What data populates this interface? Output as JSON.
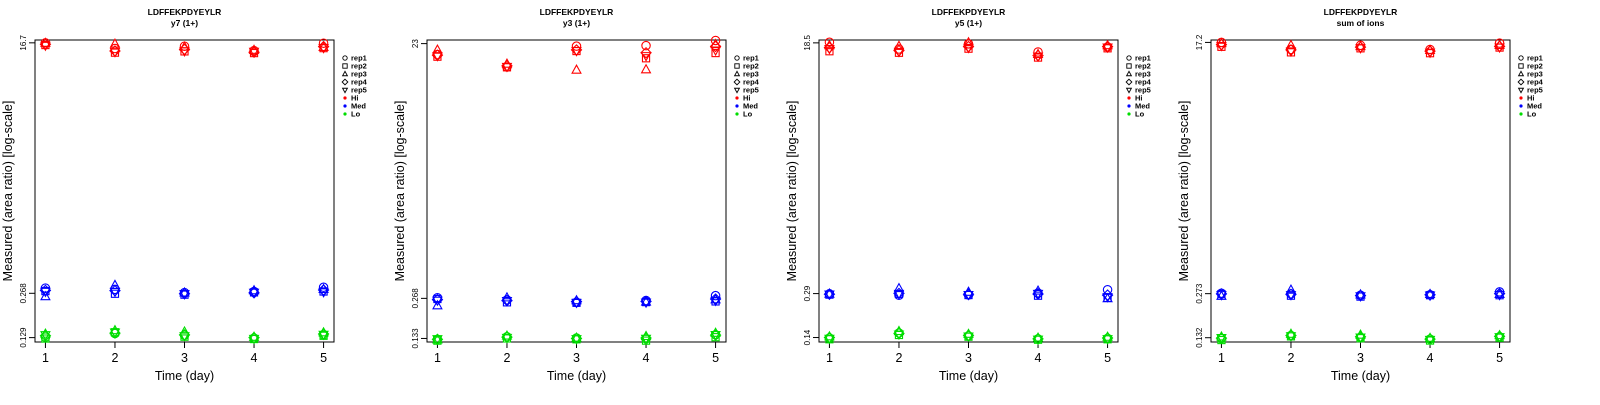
{
  "chart_data": [
    {
      "type": "scatter",
      "title": "LDFFEKPDYEYLR",
      "subtitle": "y7 (1+)",
      "xlabel": "Time (day)",
      "ylabel": "Measured (area ratio) [log-scale]",
      "y_scale": "log",
      "ylim": [
        0.12,
        17.5
      ],
      "xlim": [
        0.85,
        5.15
      ],
      "xticks": [
        "1",
        "2",
        "3",
        "4",
        "5"
      ],
      "yticks": [
        {
          "v": 0.129,
          "label": "0.129"
        },
        {
          "v": 0.268,
          "label": "0.268"
        },
        {
          "v": 16.7,
          "label": "16.7"
        }
      ],
      "series": [
        {
          "name": "Hi",
          "values": {
            "rep1": [
              16.7,
              15.2,
              15.8,
              14.7,
              16.6
            ],
            "rep2": [
              16.1,
              14.2,
              14.5,
              14.1,
              15.3
            ],
            "rep3": [
              16.6,
              16.4,
              15.6,
              14.8,
              15.5
            ],
            "rep4": [
              16.3,
              14.6,
              15.0,
              14.3,
              15.7
            ],
            "rep5": [
              16.0,
              14.4,
              14.6,
              14.5,
              15.4
            ]
          }
        },
        {
          "name": "Med",
          "values": {
            "rep1": [
              0.292,
              0.286,
              0.271,
              0.276,
              0.296
            ],
            "rep2": [
              0.278,
              0.266,
              0.262,
              0.272,
              0.276
            ],
            "rep3": [
              0.254,
              0.306,
              0.27,
              0.28,
              0.286
            ],
            "rep4": [
              0.281,
              0.28,
              0.266,
              0.27,
              0.283
            ],
            "rep5": [
              0.276,
              0.276,
              0.266,
              0.272,
              0.274
            ]
          }
        },
        {
          "name": "Lo",
          "values": {
            "rep1": [
              0.13,
              0.138,
              0.134,
              0.128,
              0.135
            ],
            "rep2": [
              0.127,
              0.141,
              0.131,
              0.126,
              0.133
            ],
            "rep3": [
              0.137,
              0.145,
              0.142,
              0.13,
              0.14
            ],
            "rep4": [
              0.133,
              0.139,
              0.135,
              0.129,
              0.137
            ],
            "rep5": [
              0.135,
              0.141,
              0.133,
              0.127,
              0.136
            ]
          }
        }
      ],
      "legend": {
        "placement": "right",
        "reps": [
          "rep1",
          "rep2",
          "rep3",
          "rep4",
          "rep5"
        ],
        "levels": [
          "Hi",
          "Med",
          "Lo"
        ]
      }
    },
    {
      "type": "scatter",
      "title": "LDFFEKPDYEYLR",
      "subtitle": "y3 (1+)",
      "xlabel": "Time (day)",
      "ylabel": "Measured (area ratio) [log-scale]",
      "y_scale": "log",
      "ylim": [
        0.125,
        24.5
      ],
      "xlim": [
        0.85,
        5.15
      ],
      "xticks": [
        "1",
        "2",
        "3",
        "4",
        "5"
      ],
      "yticks": [
        {
          "v": 0.133,
          "label": "0.133"
        },
        {
          "v": 0.268,
          "label": "0.268"
        },
        {
          "v": 23,
          "label": "23"
        }
      ],
      "series": [
        {
          "name": "Hi",
          "values": {
            "rep1": [
              19.0,
              15.3,
              22.0,
              22.2,
              24.3
            ],
            "rep2": [
              18.3,
              15.2,
              20.2,
              17.8,
              19.5
            ],
            "rep3": [
              20.6,
              16.1,
              14.5,
              14.6,
              22.7
            ],
            "rep4": [
              18.8,
              15.6,
              20.6,
              19.6,
              21.9
            ],
            "rep5": [
              18.6,
              15.4,
              20.3,
              18.6,
              20.5
            ]
          }
        },
        {
          "name": "Med",
          "values": {
            "rep1": [
              0.271,
              0.261,
              0.25,
              0.258,
              0.281
            ],
            "rep2": [
              0.265,
              0.25,
              0.248,
              0.251,
              0.254
            ],
            "rep3": [
              0.236,
              0.271,
              0.258,
              0.252,
              0.262
            ],
            "rep4": [
              0.262,
              0.258,
              0.253,
              0.254,
              0.265
            ],
            "rep5": [
              0.259,
              0.257,
              0.249,
              0.25,
              0.258
            ]
          }
        },
        {
          "name": "Lo",
          "values": {
            "rep1": [
              0.131,
              0.137,
              0.134,
              0.132,
              0.142
            ],
            "rep2": [
              0.128,
              0.133,
              0.131,
              0.128,
              0.136
            ],
            "rep3": [
              0.13,
              0.139,
              0.134,
              0.138,
              0.146
            ],
            "rep4": [
              0.131,
              0.136,
              0.133,
              0.134,
              0.141
            ],
            "rep5": [
              0.132,
              0.135,
              0.132,
              0.133,
              0.142
            ]
          }
        }
      ],
      "legend": {
        "placement": "right",
        "reps": [
          "rep1",
          "rep2",
          "rep3",
          "rep4",
          "rep5"
        ],
        "levels": [
          "Hi",
          "Med",
          "Lo"
        ]
      }
    },
    {
      "type": "scatter",
      "title": "LDFFEKPDYEYLR",
      "subtitle": "y5 (1+)",
      "xlabel": "Time (day)",
      "ylabel": "Measured (area ratio) [log-scale]",
      "y_scale": "log",
      "ylim": [
        0.13,
        19.4
      ],
      "xlim": [
        0.85,
        5.15
      ],
      "xticks": [
        "1",
        "2",
        "3",
        "4",
        "5"
      ],
      "yticks": [
        {
          "v": 0.14,
          "label": "0.14"
        },
        {
          "v": 0.29,
          "label": "0.29"
        },
        {
          "v": 18.5,
          "label": "18.5"
        }
      ],
      "series": [
        {
          "name": "Hi",
          "values": {
            "rep1": [
              18.7,
              16.7,
              18.2,
              15.9,
              17.3
            ],
            "rep2": [
              16.1,
              15.7,
              16.8,
              14.5,
              16.9
            ],
            "rep3": [
              17.7,
              17.5,
              18.6,
              15.3,
              17.7
            ],
            "rep4": [
              17.1,
              16.3,
              17.4,
              15.0,
              17.4
            ],
            "rep5": [
              16.8,
              16.0,
              17.1,
              14.8,
              17.2
            ]
          }
        },
        {
          "name": "Med",
          "values": {
            "rep1": [
              0.289,
              0.282,
              0.284,
              0.293,
              0.309
            ],
            "rep2": [
              0.285,
              0.288,
              0.283,
              0.28,
              0.27
            ],
            "rep3": [
              0.288,
              0.316,
              0.297,
              0.303,
              0.267
            ],
            "rep4": [
              0.287,
              0.291,
              0.287,
              0.288,
              0.283
            ],
            "rep5": [
              0.287,
              0.29,
              0.285,
              0.29,
              0.275
            ]
          }
        },
        {
          "name": "Lo",
          "values": {
            "rep1": [
              0.139,
              0.151,
              0.144,
              0.137,
              0.138
            ],
            "rep2": [
              0.136,
              0.146,
              0.142,
              0.135,
              0.136
            ],
            "rep3": [
              0.142,
              0.155,
              0.148,
              0.139,
              0.141
            ],
            "rep4": [
              0.14,
              0.15,
              0.145,
              0.137,
              0.139
            ],
            "rep5": [
              0.138,
              0.148,
              0.143,
              0.136,
              0.137
            ]
          }
        }
      ],
      "legend": {
        "placement": "right",
        "reps": [
          "rep1",
          "rep2",
          "rep3",
          "rep4",
          "rep5"
        ],
        "levels": [
          "Hi",
          "Med",
          "Lo"
        ]
      }
    },
    {
      "type": "scatter",
      "title": "LDFFEKPDYEYLR",
      "subtitle": "sum of ions",
      "xlabel": "Time (day)",
      "ylabel": "Measured (area ratio) [log-scale]",
      "y_scale": "log",
      "ylim": [
        0.123,
        17.9
      ],
      "xlim": [
        0.85,
        5.15
      ],
      "xticks": [
        "1",
        "2",
        "3",
        "4",
        "5"
      ],
      "yticks": [
        {
          "v": 0.132,
          "label": "0.132"
        },
        {
          "v": 0.273,
          "label": "0.273"
        },
        {
          "v": 17.2,
          "label": "17.2"
        }
      ],
      "series": [
        {
          "name": "Hi",
          "values": {
            "rep1": [
              17.2,
              15.3,
              16.4,
              15.3,
              17.0
            ],
            "rep2": [
              16.0,
              14.6,
              15.6,
              14.4,
              15.8
            ],
            "rep3": [
              16.9,
              16.4,
              16.1,
              15.1,
              16.4
            ],
            "rep4": [
              16.6,
              15.2,
              15.9,
              14.9,
              16.1
            ],
            "rep5": [
              16.3,
              14.9,
              15.7,
              14.6,
              15.9
            ]
          }
        },
        {
          "name": "Med",
          "values": {
            "rep1": [
              0.275,
              0.272,
              0.266,
              0.268,
              0.281
            ],
            "rep2": [
              0.271,
              0.264,
              0.26,
              0.266,
              0.266
            ],
            "rep3": [
              0.262,
              0.29,
              0.268,
              0.27,
              0.27
            ],
            "rep4": [
              0.272,
              0.27,
              0.264,
              0.268,
              0.273
            ],
            "rep5": [
              0.268,
              0.268,
              0.263,
              0.266,
              0.268
            ]
          }
        },
        {
          "name": "Lo",
          "values": {
            "rep1": [
              0.13,
              0.137,
              0.133,
              0.129,
              0.134
            ],
            "rep2": [
              0.127,
              0.135,
              0.131,
              0.126,
              0.132
            ],
            "rep3": [
              0.134,
              0.14,
              0.138,
              0.131,
              0.137
            ],
            "rep4": [
              0.131,
              0.137,
              0.134,
              0.129,
              0.135
            ],
            "rep5": [
              0.132,
              0.136,
              0.133,
              0.128,
              0.134
            ]
          }
        }
      ],
      "legend": {
        "placement": "right",
        "reps": [
          "rep1",
          "rep2",
          "rep3",
          "rep4",
          "rep5"
        ],
        "levels": [
          "Hi",
          "Med",
          "Lo"
        ]
      }
    }
  ],
  "colors": {
    "Hi": "#ff0000",
    "Med": "#0000ff",
    "Lo": "#00dd00"
  },
  "rep_symbols": {
    "rep1": "circle",
    "rep2": "square",
    "rep3": "triangle-up",
    "rep4": "diamond",
    "rep5": "triangle-down"
  }
}
